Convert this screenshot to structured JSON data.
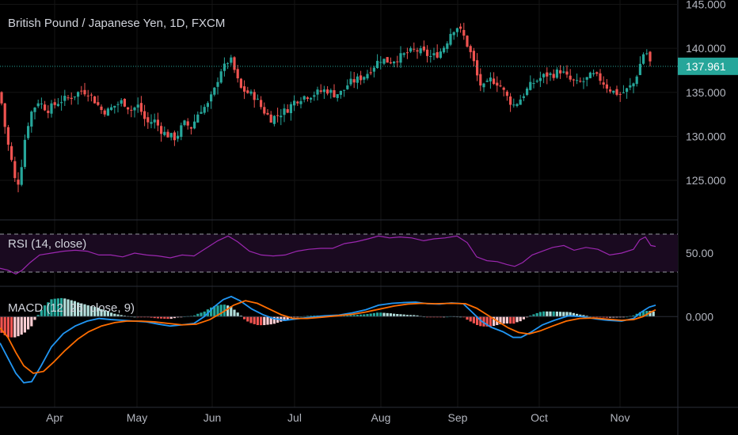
{
  "title": "British Pound / Japanese Yen, 1D, FXCM",
  "rsi_label": "RSI (14, close)",
  "macd_label": "MACD (12, 26, close, 9)",
  "current_price": "137.961",
  "colors": {
    "background": "#000000",
    "up": "#26a69a",
    "down": "#ef5350",
    "rsi_line": "#9c27b0",
    "rsi_band": "#1a0a20",
    "macd_line": "#2196f3",
    "signal_line": "#ff6d00",
    "hist_up_strong": "#26a69a",
    "hist_up_weak": "#b2dfdb",
    "hist_down_strong": "#ef5350",
    "hist_down_weak": "#ffcdd2",
    "price_tag": "#26a69a"
  },
  "chart_data": [
    {
      "type": "candlestick",
      "title": "British Pound / Japanese Yen, 1D, FXCM",
      "y_ticks": [
        "125.000",
        "130.000",
        "135.000",
        "140.000",
        "145.000"
      ],
      "ylim": [
        120.5,
        145.5
      ],
      "x_ticks": [
        "Apr",
        "May",
        "Jun",
        "Jul",
        "Aug",
        "Sep",
        "Oct",
        "Nov"
      ],
      "last_price": 137.961,
      "close_path": [
        [
          0,
          135.0
        ],
        [
          8,
          130.0
        ],
        [
          15,
          127.0
        ],
        [
          21,
          124.0
        ],
        [
          26,
          126.0
        ],
        [
          31,
          129.5
        ],
        [
          38,
          132.5
        ],
        [
          48,
          134.0
        ],
        [
          60,
          133.0
        ],
        [
          75,
          134.0
        ],
        [
          90,
          134.5
        ],
        [
          103,
          135.2
        ],
        [
          112,
          135.0
        ],
        [
          120,
          134.0
        ],
        [
          128,
          133.0
        ],
        [
          135,
          132.8
        ],
        [
          145,
          133.5
        ],
        [
          155,
          134.0
        ],
        [
          165,
          133.0
        ],
        [
          175,
          133.5
        ],
        [
          185,
          131.5
        ],
        [
          195,
          131.8
        ],
        [
          205,
          130.5
        ],
        [
          215,
          130.0
        ],
        [
          222,
          129.8
        ],
        [
          232,
          131.5
        ],
        [
          242,
          131.0
        ],
        [
          252,
          133.0
        ],
        [
          262,
          133.5
        ],
        [
          272,
          135.5
        ],
        [
          278,
          137.5
        ],
        [
          285,
          138.0
        ],
        [
          290,
          139.0
        ],
        [
          296,
          137.5
        ],
        [
          303,
          135.5
        ],
        [
          312,
          135.0
        ],
        [
          322,
          134.5
        ],
        [
          332,
          133.0
        ],
        [
          342,
          132.0
        ],
        [
          352,
          132.5
        ],
        [
          362,
          133.0
        ],
        [
          372,
          134.0
        ],
        [
          382,
          134.5
        ],
        [
          392,
          134.7
        ],
        [
          402,
          135.0
        ],
        [
          412,
          135.3
        ],
        [
          422,
          134.8
        ],
        [
          432,
          135.0
        ],
        [
          440,
          136.0
        ],
        [
          452,
          136.5
        ],
        [
          462,
          137.0
        ],
        [
          472,
          138.0
        ],
        [
          480,
          138.8
        ],
        [
          492,
          138.5
        ],
        [
          505,
          139.0
        ],
        [
          515,
          139.5
        ],
        [
          525,
          139.8
        ],
        [
          535,
          139.5
        ],
        [
          545,
          139.0
        ],
        [
          555,
          139.5
        ],
        [
          563,
          140.5
        ],
        [
          570,
          142.0
        ],
        [
          577,
          142.5
        ],
        [
          585,
          141.5
        ],
        [
          592,
          140.0
        ],
        [
          598,
          138.5
        ],
        [
          605,
          136.0
        ],
        [
          612,
          135.5
        ],
        [
          620,
          136.5
        ],
        [
          630,
          136.0
        ],
        [
          640,
          134.5
        ],
        [
          648,
          133.5
        ],
        [
          655,
          134.0
        ],
        [
          663,
          135.0
        ],
        [
          672,
          136.0
        ],
        [
          680,
          136.5
        ],
        [
          690,
          137.0
        ],
        [
          698,
          137.0
        ],
        [
          708,
          137.5
        ],
        [
          718,
          136.5
        ],
        [
          728,
          136.0
        ],
        [
          738,
          136.3
        ],
        [
          748,
          137.0
        ],
        [
          758,
          136.5
        ],
        [
          768,
          135.5
        ],
        [
          776,
          135.0
        ],
        [
          784,
          134.8
        ],
        [
          792,
          135.3
        ],
        [
          800,
          136.0
        ],
        [
          806,
          137.5
        ],
        [
          811,
          139.0
        ],
        [
          815,
          140.0
        ],
        [
          820,
          138.5
        ],
        [
          825,
          137.961
        ]
      ]
    },
    {
      "type": "line",
      "name": "RSI (14, close)",
      "y_ticks": [
        "50.00"
      ],
      "upper_band": 70,
      "lower_band": 30,
      "ylim": [
        15,
        85
      ],
      "path": [
        [
          0,
          34
        ],
        [
          10,
          32
        ],
        [
          20,
          28
        ],
        [
          28,
          32
        ],
        [
          38,
          40
        ],
        [
          50,
          48
        ],
        [
          65,
          50
        ],
        [
          80,
          52
        ],
        [
          95,
          53
        ],
        [
          110,
          52
        ],
        [
          125,
          48
        ],
        [
          140,
          48
        ],
        [
          155,
          46
        ],
        [
          170,
          50
        ],
        [
          185,
          48
        ],
        [
          200,
          47
        ],
        [
          215,
          45
        ],
        [
          230,
          48
        ],
        [
          245,
          47
        ],
        [
          260,
          55
        ],
        [
          275,
          63
        ],
        [
          288,
          68
        ],
        [
          300,
          62
        ],
        [
          315,
          52
        ],
        [
          330,
          48
        ],
        [
          345,
          47
        ],
        [
          360,
          48
        ],
        [
          375,
          52
        ],
        [
          390,
          54
        ],
        [
          405,
          55
        ],
        [
          420,
          55
        ],
        [
          435,
          60
        ],
        [
          450,
          62
        ],
        [
          465,
          65
        ],
        [
          478,
          68
        ],
        [
          492,
          66
        ],
        [
          505,
          67
        ],
        [
          520,
          66
        ],
        [
          535,
          63
        ],
        [
          548,
          65
        ],
        [
          562,
          66
        ],
        [
          577,
          68
        ],
        [
          590,
          61
        ],
        [
          602,
          46
        ],
        [
          615,
          42
        ],
        [
          628,
          41
        ],
        [
          640,
          38
        ],
        [
          650,
          36
        ],
        [
          660,
          40
        ],
        [
          672,
          48
        ],
        [
          685,
          52
        ],
        [
          698,
          56
        ],
        [
          712,
          58
        ],
        [
          725,
          53
        ],
        [
          740,
          56
        ],
        [
          755,
          54
        ],
        [
          770,
          48
        ],
        [
          785,
          50
        ],
        [
          800,
          54
        ],
        [
          808,
          64
        ],
        [
          815,
          67
        ],
        [
          822,
          58
        ],
        [
          828,
          57
        ]
      ]
    },
    {
      "type": "line",
      "name": "MACD (12, 26, close, 9)",
      "y_ticks": [
        "0.000"
      ],
      "ylim": [
        -2.4,
        0.8
      ],
      "macd": [
        [
          0,
          -0.7
        ],
        [
          10,
          -1.1
        ],
        [
          20,
          -1.5
        ],
        [
          30,
          -1.75
        ],
        [
          40,
          -1.72
        ],
        [
          52,
          -1.3
        ],
        [
          65,
          -0.8
        ],
        [
          80,
          -0.45
        ],
        [
          95,
          -0.25
        ],
        [
          110,
          -0.12
        ],
        [
          125,
          -0.05
        ],
        [
          140,
          -0.08
        ],
        [
          155,
          -0.1
        ],
        [
          170,
          -0.12
        ],
        [
          185,
          -0.14
        ],
        [
          200,
          -0.2
        ],
        [
          215,
          -0.25
        ],
        [
          230,
          -0.22
        ],
        [
          245,
          -0.18
        ],
        [
          258,
          0.0
        ],
        [
          270,
          0.25
        ],
        [
          282,
          0.45
        ],
        [
          292,
          0.53
        ],
        [
          303,
          0.42
        ],
        [
          318,
          0.2
        ],
        [
          332,
          0.05
        ],
        [
          345,
          -0.05
        ],
        [
          360,
          -0.1
        ],
        [
          375,
          -0.06
        ],
        [
          392,
          -0.02
        ],
        [
          410,
          0.02
        ],
        [
          428,
          0.04
        ],
        [
          445,
          0.1
        ],
        [
          462,
          0.18
        ],
        [
          478,
          0.3
        ],
        [
          495,
          0.35
        ],
        [
          510,
          0.37
        ],
        [
          525,
          0.38
        ],
        [
          540,
          0.34
        ],
        [
          555,
          0.33
        ],
        [
          570,
          0.36
        ],
        [
          585,
          0.34
        ],
        [
          596,
          0.12
        ],
        [
          608,
          -0.12
        ],
        [
          620,
          -0.28
        ],
        [
          635,
          -0.4
        ],
        [
          648,
          -0.55
        ],
        [
          658,
          -0.55
        ],
        [
          670,
          -0.42
        ],
        [
          685,
          -0.22
        ],
        [
          700,
          -0.1
        ],
        [
          718,
          0.02
        ],
        [
          735,
          0.0
        ],
        [
          752,
          -0.06
        ],
        [
          768,
          -0.1
        ],
        [
          785,
          -0.12
        ],
        [
          800,
          -0.05
        ],
        [
          810,
          0.12
        ],
        [
          820,
          0.25
        ],
        [
          828,
          0.3
        ]
      ],
      "signal": [
        [
          0,
          -0.3
        ],
        [
          10,
          -0.55
        ],
        [
          20,
          -0.95
        ],
        [
          30,
          -1.3
        ],
        [
          42,
          -1.5
        ],
        [
          55,
          -1.45
        ],
        [
          68,
          -1.2
        ],
        [
          82,
          -0.9
        ],
        [
          98,
          -0.6
        ],
        [
          112,
          -0.4
        ],
        [
          128,
          -0.25
        ],
        [
          145,
          -0.16
        ],
        [
          160,
          -0.12
        ],
        [
          178,
          -0.12
        ],
        [
          195,
          -0.14
        ],
        [
          212,
          -0.18
        ],
        [
          230,
          -0.22
        ],
        [
          248,
          -0.2
        ],
        [
          265,
          -0.08
        ],
        [
          280,
          0.1
        ],
        [
          295,
          0.3
        ],
        [
          310,
          0.42
        ],
        [
          325,
          0.35
        ],
        [
          340,
          0.2
        ],
        [
          355,
          0.05
        ],
        [
          370,
          -0.05
        ],
        [
          388,
          -0.05
        ],
        [
          405,
          -0.02
        ],
        [
          425,
          0.02
        ],
        [
          445,
          0.06
        ],
        [
          462,
          0.12
        ],
        [
          480,
          0.2
        ],
        [
          498,
          0.28
        ],
        [
          515,
          0.33
        ],
        [
          532,
          0.35
        ],
        [
          550,
          0.34
        ],
        [
          570,
          0.35
        ],
        [
          588,
          0.34
        ],
        [
          602,
          0.22
        ],
        [
          615,
          0.05
        ],
        [
          628,
          -0.12
        ],
        [
          642,
          -0.3
        ],
        [
          655,
          -0.42
        ],
        [
          668,
          -0.46
        ],
        [
          682,
          -0.38
        ],
        [
          698,
          -0.25
        ],
        [
          715,
          -0.12
        ],
        [
          732,
          -0.05
        ],
        [
          750,
          -0.04
        ],
        [
          768,
          -0.07
        ],
        [
          785,
          -0.1
        ],
        [
          800,
          -0.08
        ],
        [
          812,
          0.0
        ],
        [
          822,
          0.12
        ],
        [
          828,
          0.18
        ]
      ]
    }
  ]
}
